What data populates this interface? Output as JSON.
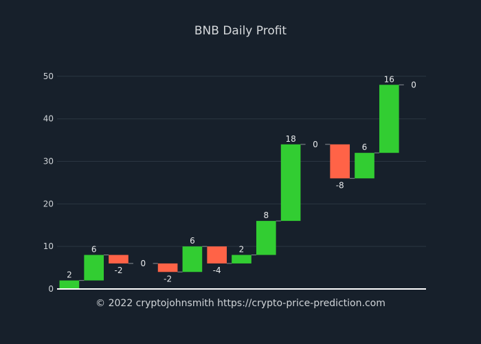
{
  "title": "BNB Daily Profit",
  "footer": "© 2022 cryptojohnsmith  https://crypto-price-prediction.com",
  "colors": {
    "background": "#17202b",
    "increase": "#32cd32",
    "decrease": "#ff6347",
    "grid": "#2b3642",
    "baseline": "#ffffff"
  },
  "chart_data": {
    "type": "waterfall",
    "title": "BNB Daily Profit",
    "xlabel": "",
    "ylabel": "",
    "ylim": [
      0,
      55
    ],
    "yticks": [
      0,
      10,
      20,
      30,
      40,
      50
    ],
    "grid": true,
    "series": [
      {
        "values": [
          2,
          6,
          -2,
          0,
          -2,
          6,
          -4,
          2,
          8,
          18,
          0,
          -8,
          6,
          16,
          0
        ],
        "labels": [
          "2",
          "6",
          "-2",
          "0",
          "-2",
          "6",
          "-4",
          "2",
          "8",
          "18",
          "0",
          "-8",
          "6",
          "16",
          "0"
        ]
      }
    ]
  }
}
